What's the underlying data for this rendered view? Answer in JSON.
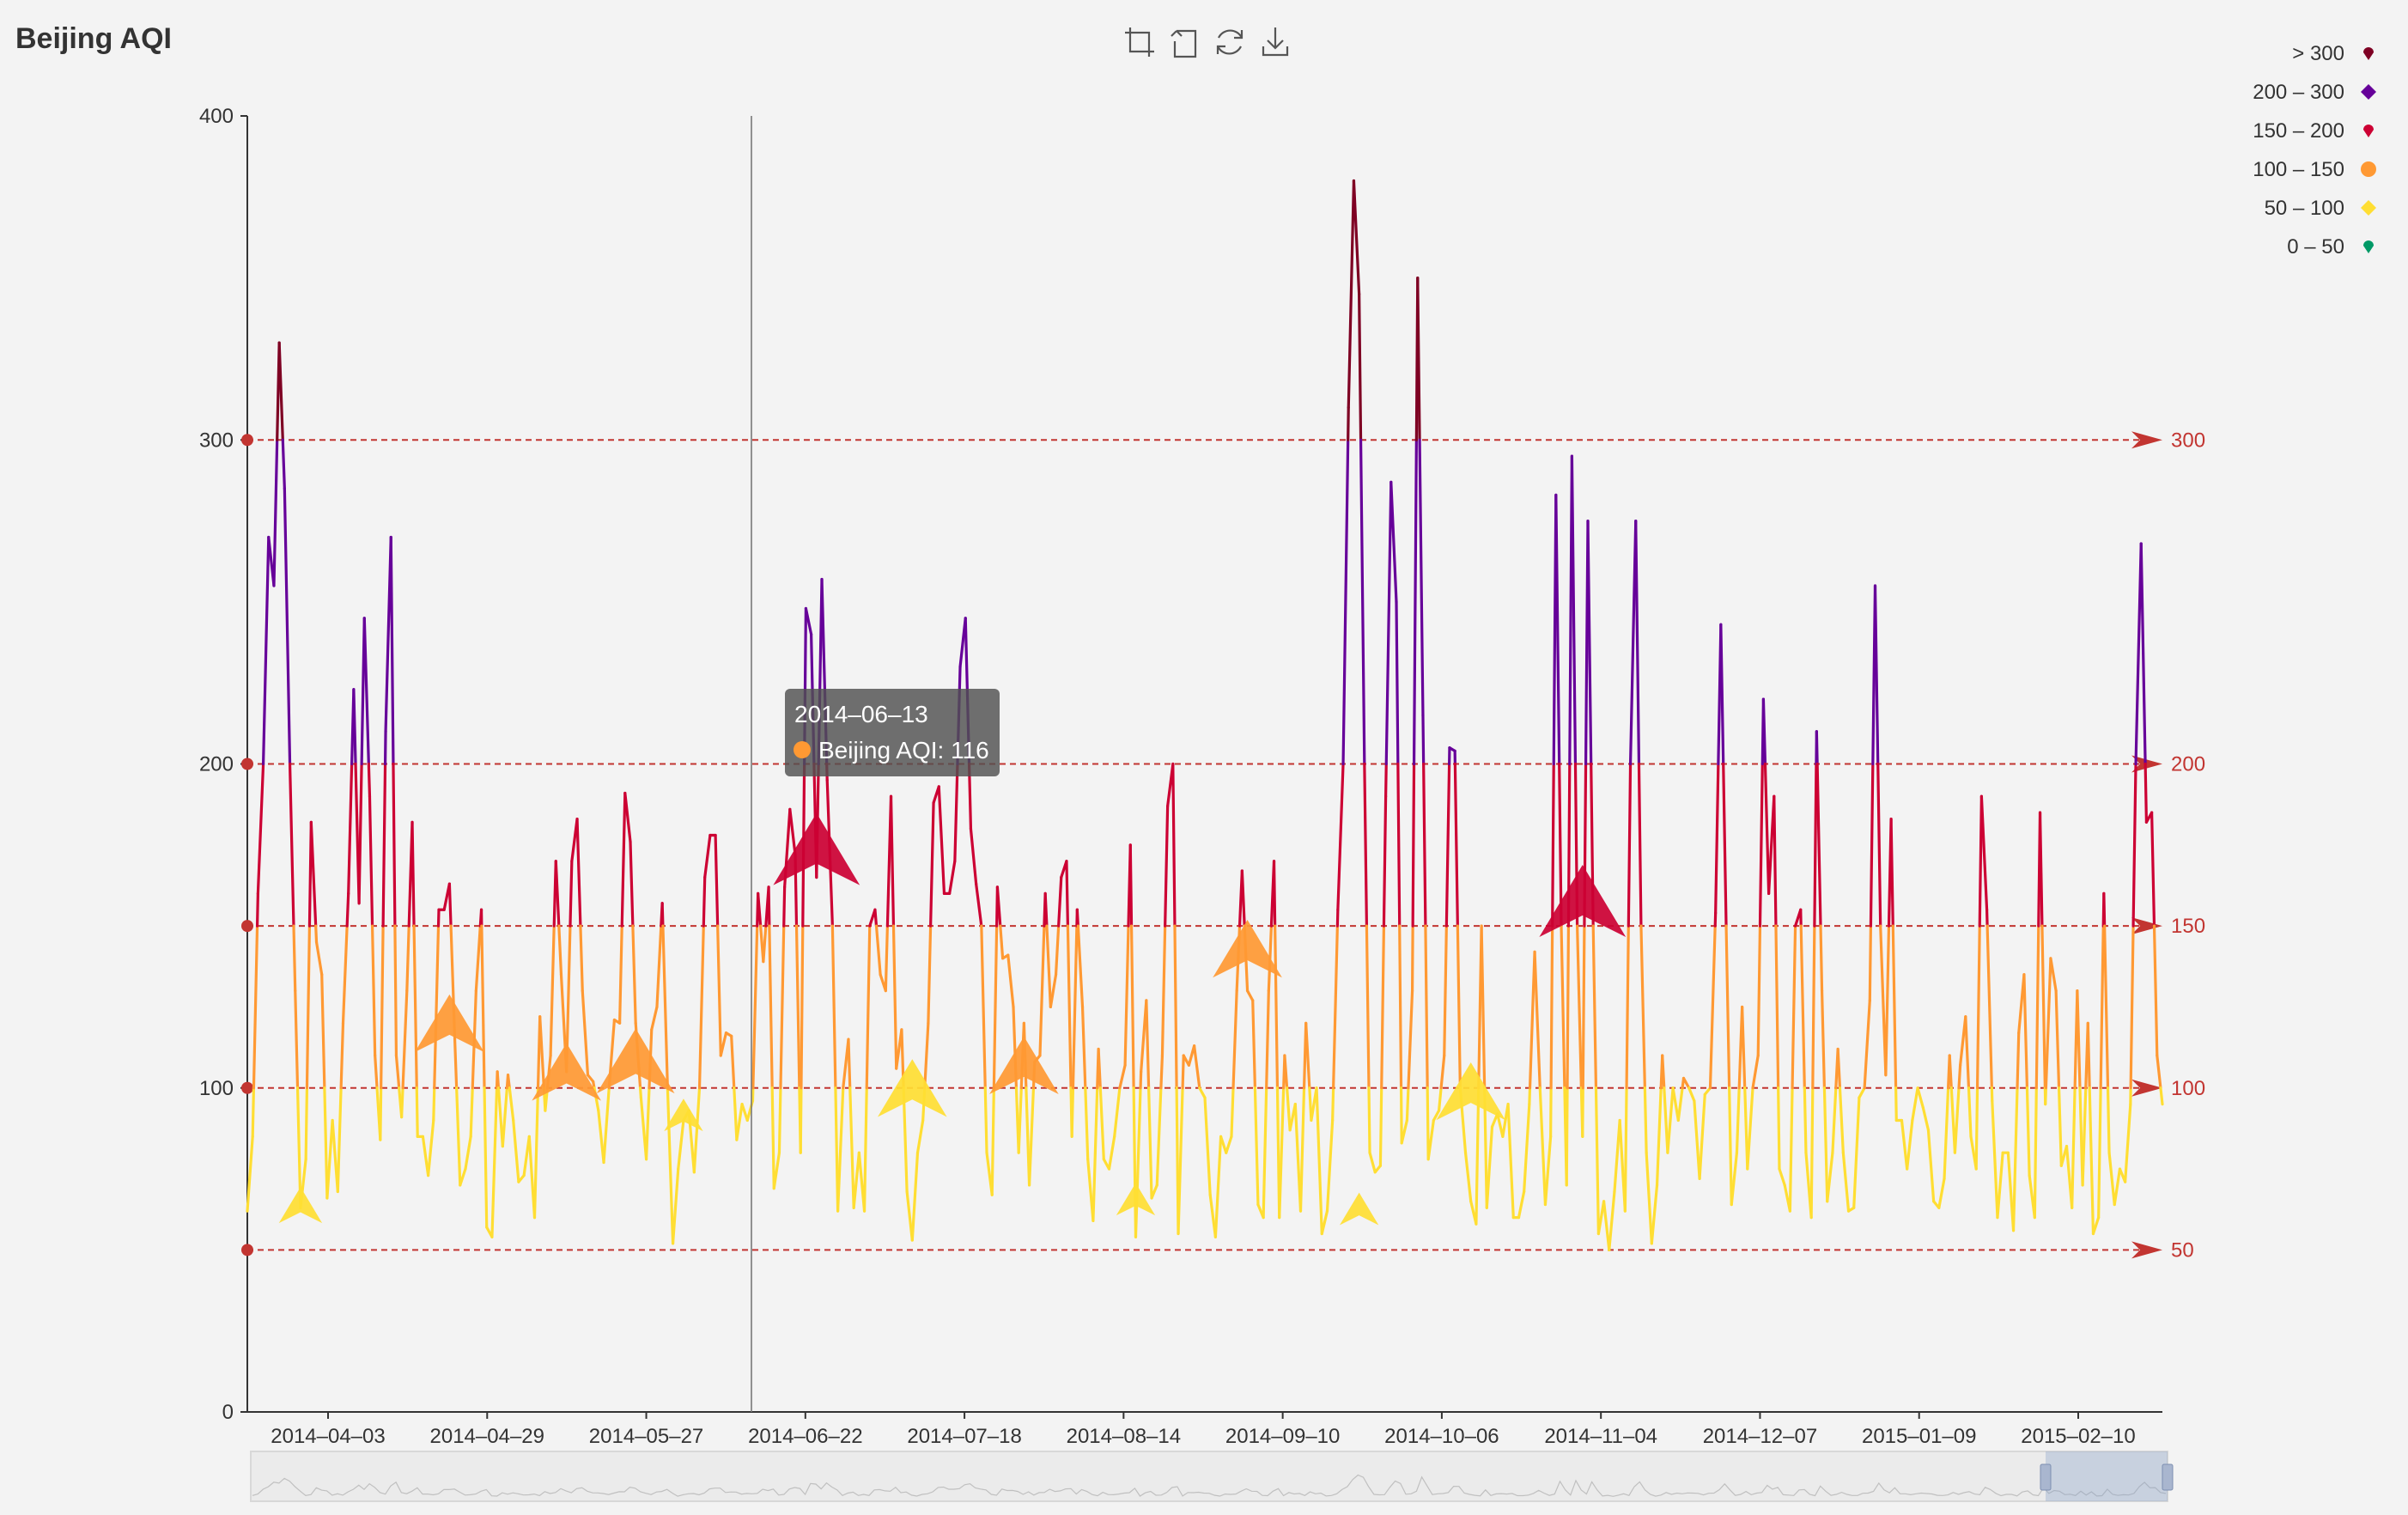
{
  "title": "Beijing AQI",
  "toolbox": [
    {
      "name": "zoom-select-icon",
      "title": ""
    },
    {
      "name": "zoom-reset-icon",
      "title": ""
    },
    {
      "name": "restore-icon",
      "title": ""
    },
    {
      "name": "save-image-icon",
      "title": ""
    }
  ],
  "legend": {
    "position": "top-right",
    "items": [
      {
        "label": "> 300",
        "color": "#7e0023",
        "symbol": "pin"
      },
      {
        "label": "200 – 300",
        "color": "#660099",
        "symbol": "diamond"
      },
      {
        "label": "150 – 200",
        "color": "#cc0033",
        "symbol": "pin"
      },
      {
        "label": "100 – 150",
        "color": "#ff9933",
        "symbol": "circle"
      },
      {
        "label": "50 – 100",
        "color": "#ffde33",
        "symbol": "diamond"
      },
      {
        "label": "0 – 50",
        "color": "#096",
        "symbol": "pin"
      }
    ]
  },
  "tooltip": {
    "date": "2014–06–13",
    "series": "Beijing AQI",
    "value": 116,
    "text": "Beijing AQI: 116",
    "marker_color": "#ff9933"
  },
  "chart_data": {
    "type": "line",
    "title": "Beijing AQI",
    "xlabel": "",
    "ylabel": "",
    "ylim": [
      0,
      400
    ],
    "yticks": [
      "0",
      "100",
      "200",
      "300",
      "400"
    ],
    "x_tick_labels": [
      "2014–04–03",
      "2014–04–29",
      "2014–05–27",
      "2014–06–22",
      "2014–07–18",
      "2014–08–14",
      "2014–09–10",
      "2014–10–06",
      "2014–11–04",
      "2014–12–07",
      "2015–01–09",
      "2015–02–10"
    ],
    "grid": false,
    "visual_map": [
      {
        "gt": 300,
        "color": "#7e0023"
      },
      {
        "gt": 200,
        "lte": 300,
        "color": "#660099"
      },
      {
        "gt": 150,
        "lte": 200,
        "color": "#cc0033"
      },
      {
        "gt": 100,
        "lte": 150,
        "color": "#ff9933"
      },
      {
        "gt": 50,
        "lte": 100,
        "color": "#ffde33"
      },
      {
        "gt": 0,
        "lte": 50,
        "color": "#096"
      }
    ],
    "mark_lines": [
      {
        "value": 50,
        "label": "50"
      },
      {
        "value": 100,
        "label": "100"
      },
      {
        "value": 150,
        "label": "150"
      },
      {
        "value": 200,
        "label": "200"
      },
      {
        "value": 300,
        "label": "300"
      }
    ],
    "marker_arrows": [
      {
        "index": 10,
        "value": 62,
        "size": 1.0
      },
      {
        "index": 38,
        "value": 117,
        "size": 1.6
      },
      {
        "index": 60,
        "value": 102,
        "size": 1.6
      },
      {
        "index": 73,
        "value": 105,
        "size": 1.8
      },
      {
        "index": 82,
        "value": 90,
        "size": 0.9
      },
      {
        "index": 107,
        "value": 170,
        "size": 2.0
      },
      {
        "index": 125,
        "value": 97,
        "size": 1.6
      },
      {
        "index": 146,
        "value": 104,
        "size": 1.6
      },
      {
        "index": 167,
        "value": 64,
        "size": 0.9
      },
      {
        "index": 188,
        "value": 140,
        "size": 1.6
      },
      {
        "index": 209,
        "value": 61,
        "size": 0.9
      },
      {
        "index": 230,
        "value": 96,
        "size": 1.6
      },
      {
        "index": 251,
        "value": 154,
        "size": 2.0
      }
    ],
    "series": [
      {
        "name": "Beijing AQI",
        "values": [
          62,
          85,
          160,
          200,
          270,
          255,
          330,
          285,
          200,
          130,
          63,
          78,
          182,
          145,
          135,
          66,
          90,
          68,
          120,
          160,
          223,
          157,
          245,
          190,
          110,
          84,
          210,
          270,
          110,
          91,
          130,
          182,
          85,
          85,
          73,
          90,
          155,
          155,
          163,
          115,
          70,
          75,
          85,
          130,
          155,
          57,
          54,
          105,
          82,
          104,
          90,
          71,
          73,
          85,
          60,
          122,
          93,
          110,
          170,
          135,
          105,
          170,
          183,
          130,
          104,
          102,
          93,
          77,
          100,
          121,
          120,
          191,
          176,
          120,
          97,
          78,
          118,
          125,
          157,
          100,
          52,
          75,
          90,
          93,
          74,
          100,
          165,
          178,
          178,
          110,
          117,
          116,
          84,
          95,
          90,
          96,
          160,
          139,
          162,
          69,
          80,
          162,
          186,
          172,
          80,
          248,
          240,
          165,
          257,
          195,
          150,
          62,
          100,
          115,
          63,
          80,
          62,
          150,
          155,
          135,
          130,
          190,
          106,
          118,
          68,
          53,
          80,
          90,
          120,
          188,
          193,
          160,
          160,
          170,
          230,
          245,
          180,
          163,
          150,
          80,
          67,
          162,
          140,
          141,
          125,
          80,
          120,
          70,
          108,
          110,
          160,
          125,
          135,
          165,
          170,
          85,
          155,
          125,
          78,
          59,
          112,
          78,
          75,
          85,
          100,
          107,
          175,
          54,
          105,
          127,
          66,
          70,
          110,
          187,
          200,
          55,
          110,
          107,
          113,
          100,
          97,
          67,
          54,
          85,
          80,
          85,
          130,
          167,
          130,
          127,
          64,
          60,
          130,
          170,
          60,
          110,
          87,
          95,
          62,
          120,
          90,
          100,
          55,
          62,
          90,
          155,
          200,
          310,
          380,
          345,
          200,
          80,
          74,
          76,
          190,
          287,
          250,
          83,
          90,
          130,
          350,
          215,
          78,
          90,
          93,
          110,
          205,
          204,
          100,
          80,
          65,
          58,
          150,
          63,
          88,
          92,
          85,
          95,
          60,
          60,
          68,
          95,
          142,
          100,
          64,
          85,
          283,
          150,
          70,
          295,
          150,
          85,
          275,
          150,
          55,
          65,
          50,
          68,
          90,
          62,
          200,
          275,
          150,
          80,
          52,
          70,
          110,
          80,
          100,
          90,
          103,
          100,
          96,
          72,
          98,
          100,
          154,
          243,
          150,
          64,
          80,
          125,
          75,
          100,
          110,
          220,
          160,
          190,
          75,
          70,
          62,
          150,
          155,
          80,
          60,
          210,
          130,
          65,
          80,
          112,
          80,
          62,
          63,
          97,
          100,
          127,
          255,
          150,
          104,
          183,
          90,
          90,
          75,
          90,
          100,
          94,
          87,
          65,
          63,
          72,
          110,
          80,
          107,
          122,
          85,
          75,
          190,
          155,
          96,
          60,
          80,
          80,
          56,
          117,
          135,
          73,
          60,
          185,
          95,
          140,
          130,
          76,
          82,
          63,
          130,
          70,
          120,
          55,
          60,
          160,
          80,
          64,
          75,
          71,
          95,
          200,
          268,
          182,
          185,
          110,
          95
        ]
      }
    ]
  }
}
